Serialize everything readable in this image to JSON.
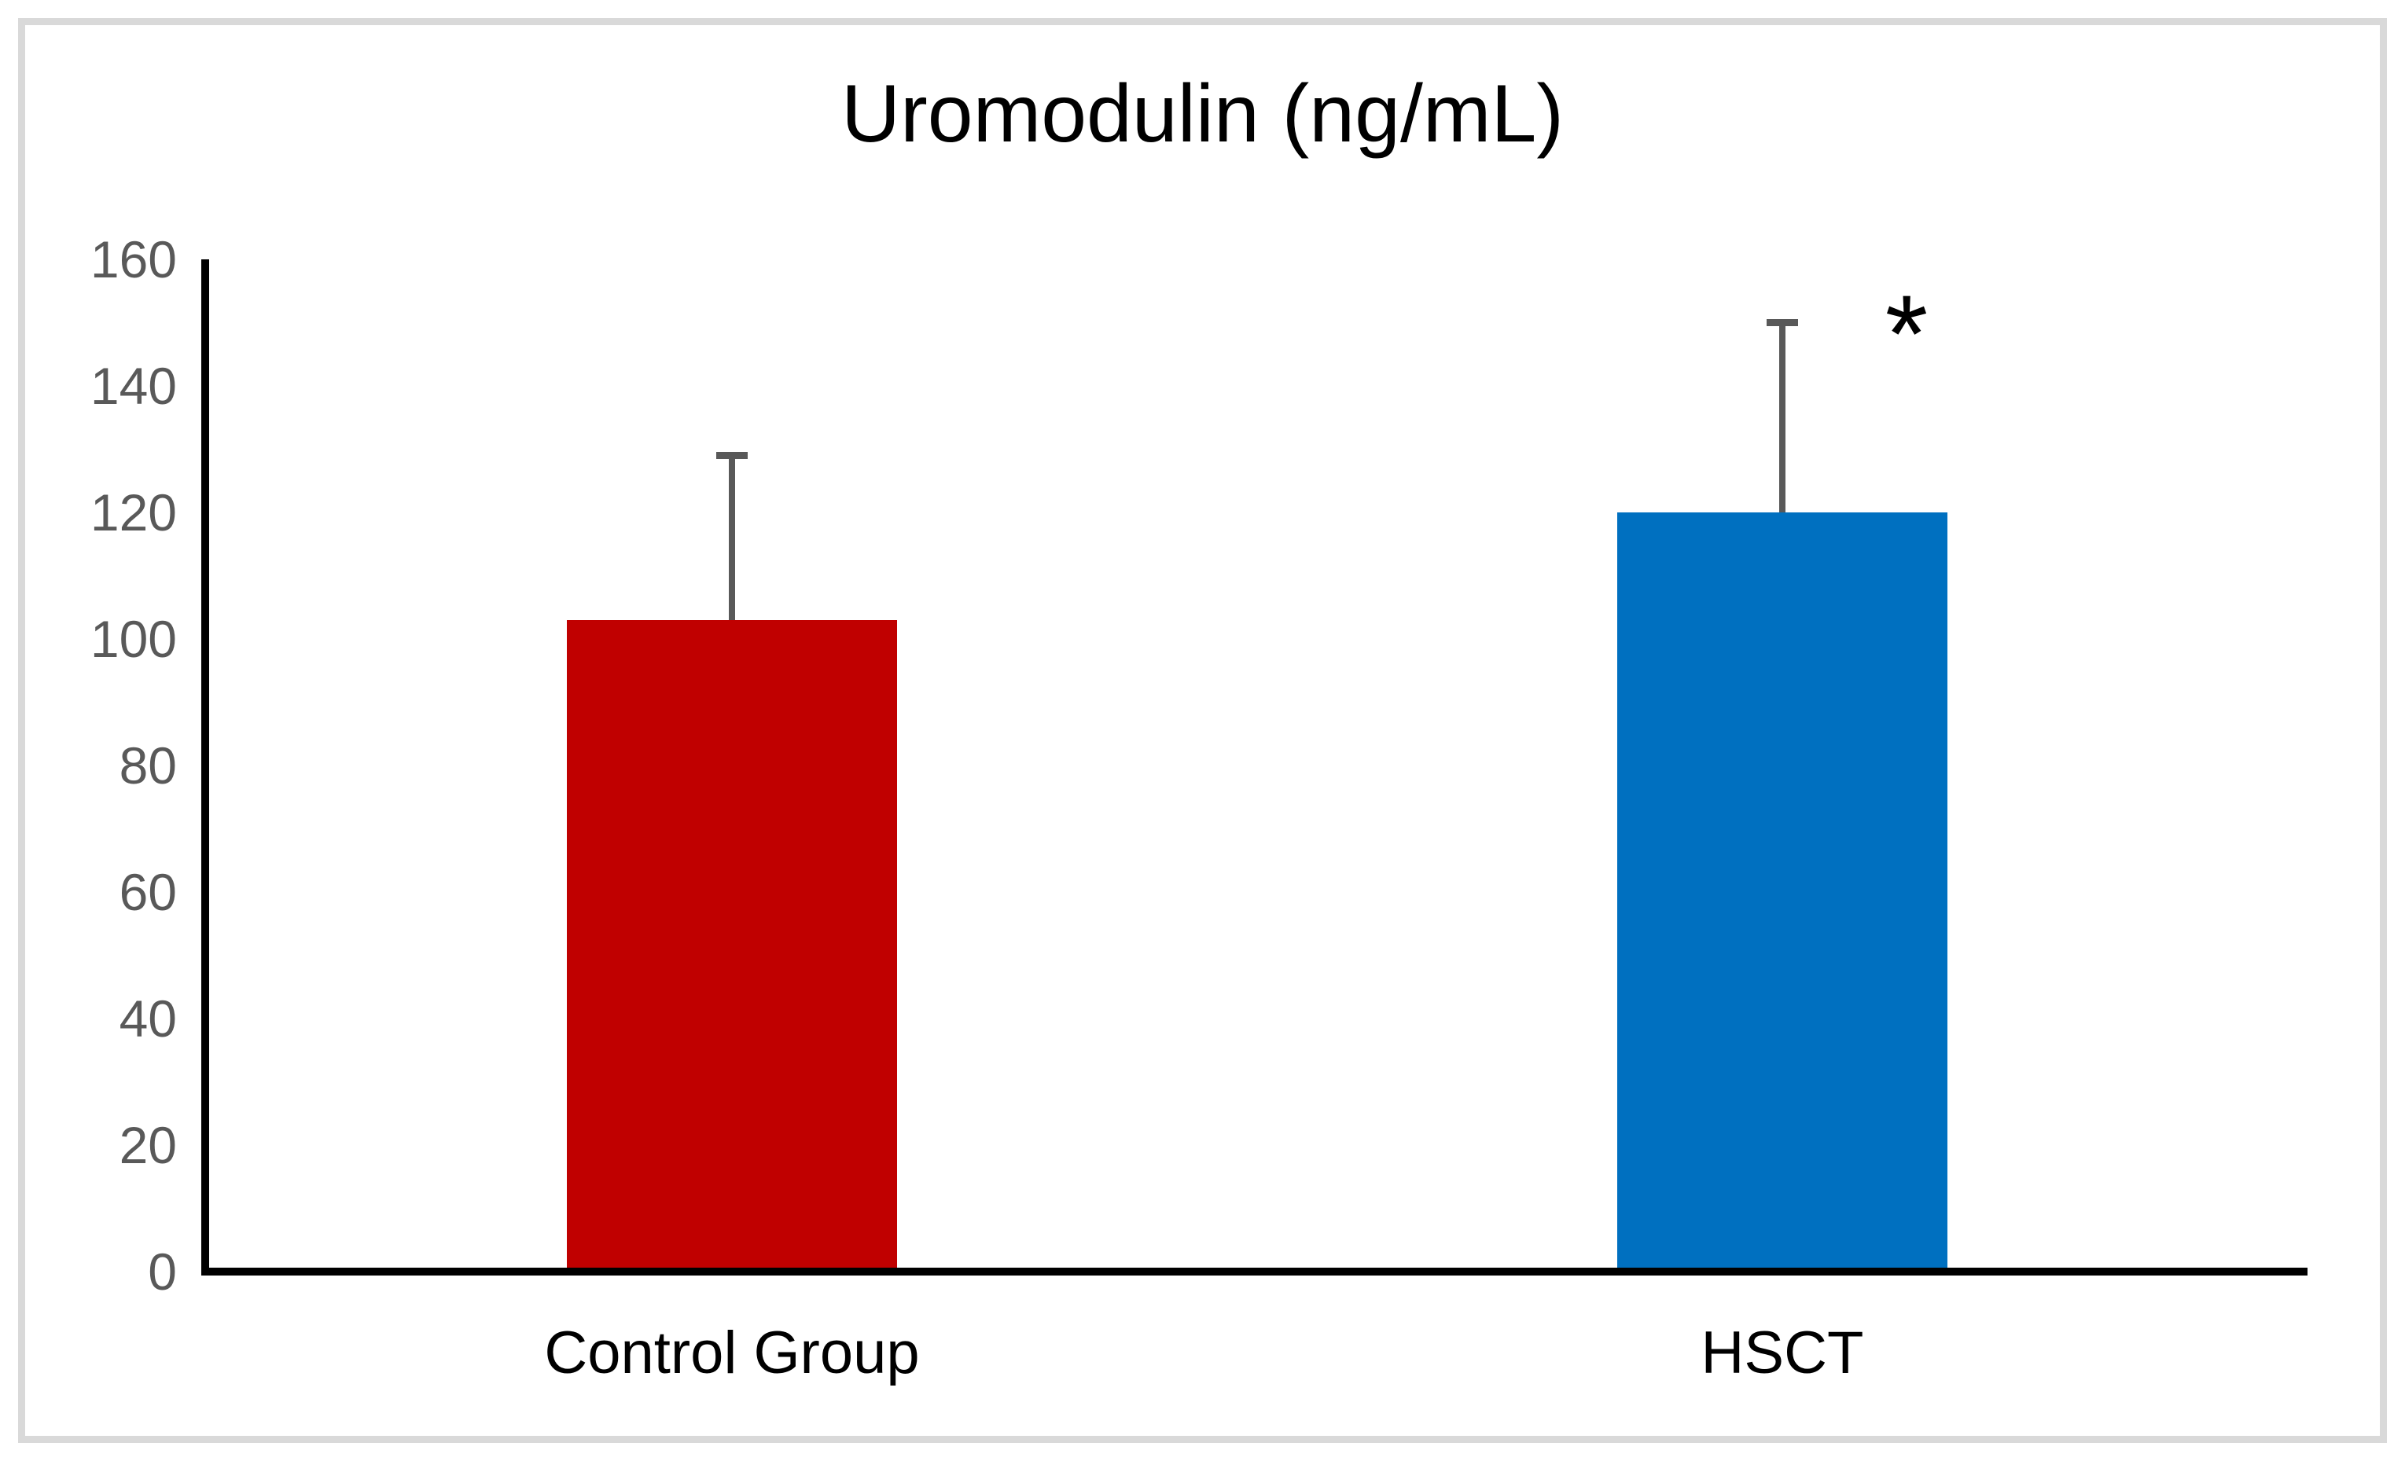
{
  "chart_data": {
    "type": "bar",
    "title": "Uromodulin (ng/mL)",
    "categories": [
      "Control Group",
      "HSCT"
    ],
    "values": [
      103,
      120
    ],
    "error_plus": [
      26,
      30
    ],
    "bar_colors": [
      "#C00000",
      "#0070C0"
    ],
    "yticks": [
      0,
      20,
      40,
      60,
      80,
      100,
      120,
      140,
      160
    ],
    "ylim": [
      0,
      160
    ],
    "xlabel": "",
    "ylabel": "",
    "grid": false,
    "legend": false,
    "annotations": [
      {
        "text": "*",
        "category": "HSCT",
        "position": "above-right-of-error-bar"
      }
    ]
  },
  "style": {
    "background": "#FFFFFF",
    "figure_border_color": "#D9D9D9",
    "axis_color": "#000000",
    "tick_label_color": "#595959",
    "error_bar_color": "#595959",
    "title_color": "#000000",
    "category_label_color": "#000000"
  }
}
